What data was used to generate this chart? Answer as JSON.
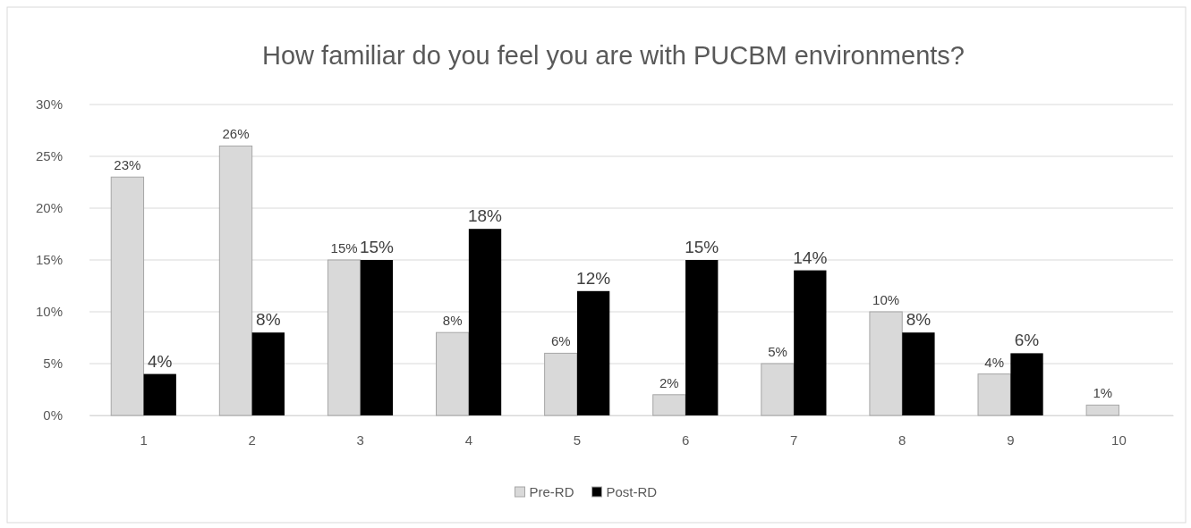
{
  "chart_data": {
    "type": "bar",
    "title": "How familiar do you feel you are with PUCBM environments?",
    "categories": [
      "1",
      "2",
      "3",
      "4",
      "5",
      "6",
      "7",
      "8",
      "9",
      "10"
    ],
    "series": [
      {
        "name": "Pre-RD",
        "color": "#d9d9d9",
        "values": [
          23,
          26,
          15,
          8,
          6,
          2,
          5,
          10,
          4,
          1
        ],
        "value_labels": [
          "23%",
          "26%",
          "15%",
          "8%",
          "6%",
          "2%",
          "5%",
          "10%",
          "4%",
          "1%"
        ]
      },
      {
        "name": "Post-RD",
        "color": "#000000",
        "values": [
          4,
          8,
          15,
          18,
          12,
          15,
          14,
          8,
          6,
          null
        ],
        "value_labels": [
          "4%",
          "8%",
          "15%",
          "18%",
          "12%",
          "15%",
          "14%",
          "8%",
          "6%",
          null
        ]
      }
    ],
    "ylim": [
      0,
      30
    ],
    "yticks": [
      {
        "value": 0,
        "label": "0%"
      },
      {
        "value": 5,
        "label": "5%"
      },
      {
        "value": 10,
        "label": "10%"
      },
      {
        "value": 15,
        "label": "15%"
      },
      {
        "value": 20,
        "label": "20%"
      },
      {
        "value": 25,
        "label": "25%"
      },
      {
        "value": 30,
        "label": "30%"
      }
    ],
    "grid": "y",
    "legend": "bottom"
  }
}
